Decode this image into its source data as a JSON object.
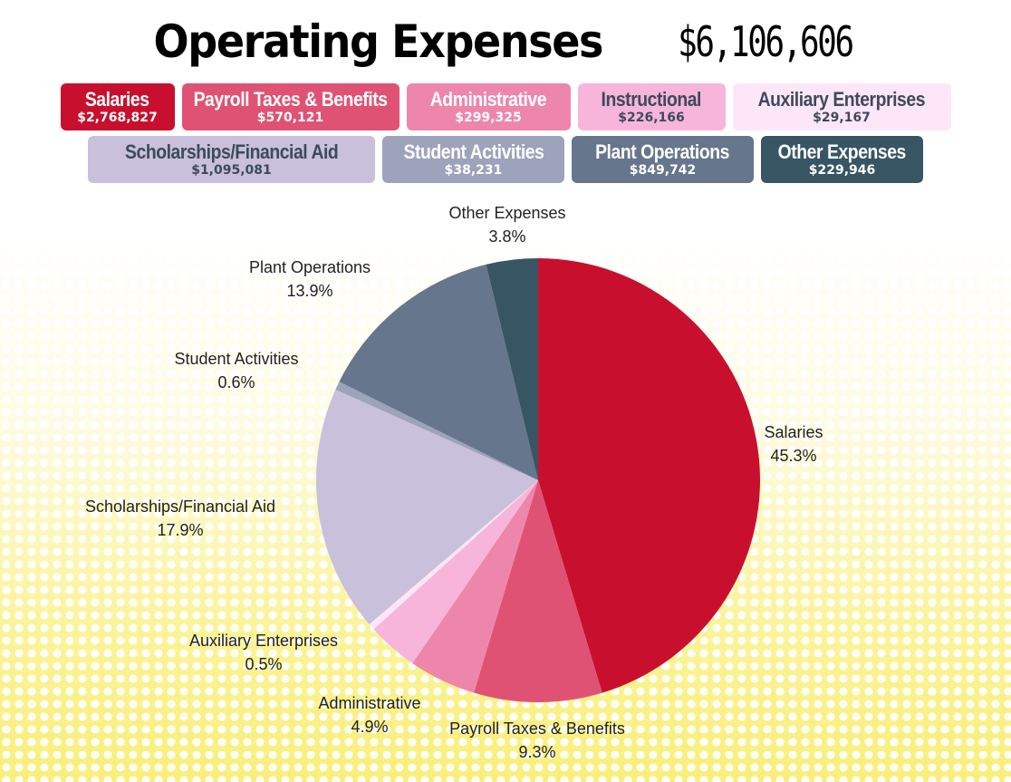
{
  "header": {
    "title": "Operating Expenses",
    "total": "$6,106,606"
  },
  "legend": [
    {
      "name": "Salaries",
      "amount": "$2,768,827",
      "bg": "#c8102e",
      "fg": "#ffffff"
    },
    {
      "name": "Payroll Taxes & Benefits",
      "amount": "$570,121",
      "bg": "#e05274",
      "fg": "#ffffff"
    },
    {
      "name": "Administrative",
      "amount": "$299,325",
      "bg": "#ee86ac",
      "fg": "#ffffff"
    },
    {
      "name": "Instructional",
      "amount": "$226,166",
      "bg": "#f7b5db",
      "fg": "#3c4a5c"
    },
    {
      "name": "Auxiliary Enterprises",
      "amount": "$29,167",
      "bg": "#fde6f8",
      "fg": "#3c4a5c"
    },
    {
      "name": "Scholarships/Financial Aid",
      "amount": "$1,095,081",
      "bg": "#c9c0db",
      "fg": "#3c4a5c"
    },
    {
      "name": "Student Activities",
      "amount": "$38,231",
      "bg": "#9ea3bc",
      "fg": "#ffffff"
    },
    {
      "name": "Plant Operations",
      "amount": "$849,742",
      "bg": "#66768c",
      "fg": "#ffffff"
    },
    {
      "name": "Other Expenses",
      "amount": "$229,946",
      "bg": "#385563",
      "fg": "#ffffff"
    }
  ],
  "chart_data": {
    "type": "pie",
    "title": "Operating Expenses",
    "total": 6106606,
    "slices": [
      {
        "label": "Salaries",
        "value": 2768827,
        "pct_label": "45.3%",
        "color": "#c8102e"
      },
      {
        "label": "Payroll Taxes & Benefits",
        "value": 570121,
        "pct_label": "9.3%",
        "color": "#e05274"
      },
      {
        "label": "Administrative",
        "value": 299325,
        "pct_label": "4.9%",
        "color": "#ee86ac"
      },
      {
        "label": "Instructional",
        "value": 226166,
        "pct_label": "",
        "color": "#f7b5db"
      },
      {
        "label": "Auxiliary Enterprises",
        "value": 29167,
        "pct_label": "0.5%",
        "color": "#fde6f8"
      },
      {
        "label": "Scholarships/Financial Aid",
        "value": 1095081,
        "pct_label": "17.9%",
        "color": "#c9c0db"
      },
      {
        "label": "Student Activities",
        "value": 38231,
        "pct_label": "0.6%",
        "color": "#9ea3bc"
      },
      {
        "label": "Plant Operations",
        "value": 849742,
        "pct_label": "13.9%",
        "color": "#66768c"
      },
      {
        "label": "Other Expenses",
        "value": 229946,
        "pct_label": "3.8%",
        "color": "#385563"
      }
    ]
  }
}
